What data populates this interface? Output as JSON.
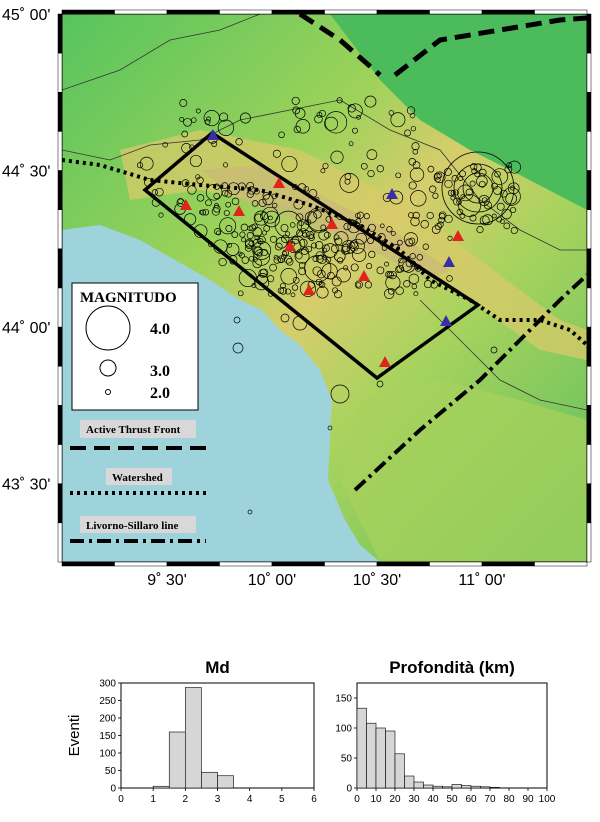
{
  "map": {
    "lat_labels": [
      {
        "text": "45˚ 00'",
        "lat": 45.0
      },
      {
        "text": "44˚ 30'",
        "lat": 44.5
      },
      {
        "text": "44˚ 00'",
        "lat": 44.0
      },
      {
        "text": "43˚ 30'",
        "lat": 43.5
      }
    ],
    "lon_labels": [
      {
        "text": "9˚ 30'",
        "lon": 9.5
      },
      {
        "text": "10˚ 00'",
        "lon": 10.0
      },
      {
        "text": "10˚ 30'",
        "lon": 10.5
      },
      {
        "text": "11˚ 00'",
        "lon": 11.0
      }
    ],
    "colors": {
      "sea": "#9fd3dc",
      "lowland": "#4fbf5f",
      "hills": "#8fcf55",
      "mountains": "#d9cf6a",
      "peaks": "#c9b27a",
      "outline": "#000000",
      "uplift_station": "#e0241b",
      "blue_station": "#3a2ea8"
    },
    "legend": {
      "title": "MAGNITUDO",
      "items": [
        {
          "label": "4.0",
          "magnitude": 4.0
        },
        {
          "label": "3.0",
          "magnitude": 3.0
        },
        {
          "label": "2.0",
          "magnitude": 2.0
        }
      ]
    },
    "line_legend": [
      {
        "label": "Active Thrust Front",
        "style": "dashed"
      },
      {
        "label": "Watershed",
        "style": "dotted"
      },
      {
        "label": "Livorno-Sillaro line",
        "style": "dash-dot"
      }
    ]
  },
  "histograms": [
    {
      "title": "Md",
      "ylabel": "Eventi",
      "x_ticks": [
        "0",
        "1",
        "2",
        "3",
        "4",
        "5",
        "6"
      ],
      "y_ticks": [
        "0",
        "50",
        "100",
        "150",
        "200",
        "250",
        "300"
      ],
      "bins": [
        {
          "from": 1.0,
          "to": 1.5,
          "count": 5
        },
        {
          "from": 1.5,
          "to": 2.0,
          "count": 160
        },
        {
          "from": 2.0,
          "to": 2.5,
          "count": 287
        },
        {
          "from": 2.5,
          "to": 3.0,
          "count": 45
        },
        {
          "from": 3.0,
          "to": 3.5,
          "count": 35
        }
      ]
    },
    {
      "title": "Profondità (km)",
      "ylabel": "",
      "x_ticks": [
        "0",
        "10",
        "20",
        "30",
        "40",
        "50",
        "60",
        "70",
        "80",
        "90",
        "100"
      ],
      "y_ticks": [
        "0",
        "50",
        "100",
        "150"
      ],
      "bins": [
        {
          "from": 0,
          "to": 5,
          "count": 133
        },
        {
          "from": 5,
          "to": 10,
          "count": 108
        },
        {
          "from": 10,
          "to": 15,
          "count": 100
        },
        {
          "from": 15,
          "to": 20,
          "count": 95
        },
        {
          "from": 20,
          "to": 25,
          "count": 57
        },
        {
          "from": 25,
          "to": 30,
          "count": 20
        },
        {
          "from": 30,
          "to": 35,
          "count": 10
        },
        {
          "from": 35,
          "to": 40,
          "count": 5
        },
        {
          "from": 40,
          "to": 45,
          "count": 3
        },
        {
          "from": 45,
          "to": 50,
          "count": 2
        },
        {
          "from": 50,
          "to": 55,
          "count": 6
        },
        {
          "from": 55,
          "to": 60,
          "count": 4
        },
        {
          "from": 60,
          "to": 65,
          "count": 3
        },
        {
          "from": 65,
          "to": 70,
          "count": 2
        },
        {
          "from": 70,
          "to": 75,
          "count": 1
        }
      ]
    }
  ]
}
